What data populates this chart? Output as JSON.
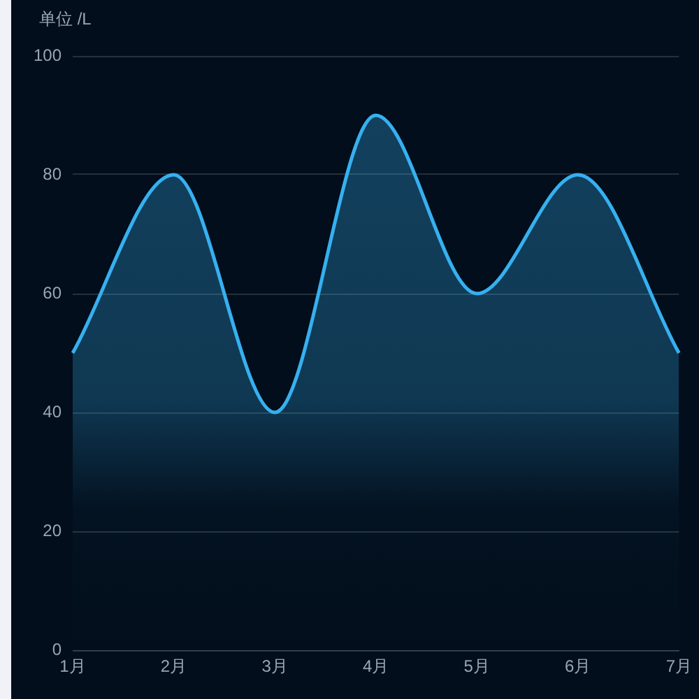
{
  "chart_data": {
    "type": "area",
    "ylabel": "单位 /L",
    "categories": [
      "1月",
      "2月",
      "3月",
      "4月",
      "5月",
      "6月",
      "7月"
    ],
    "series": [
      {
        "color": "#36b0f0",
        "values": [
          50,
          80,
          40,
          90,
          60,
          80,
          50
        ]
      }
    ],
    "ylim": [
      0,
      100
    ],
    "yticks": [
      0,
      20,
      40,
      60,
      80,
      100
    ],
    "grid": "y",
    "marker": "none"
  }
}
